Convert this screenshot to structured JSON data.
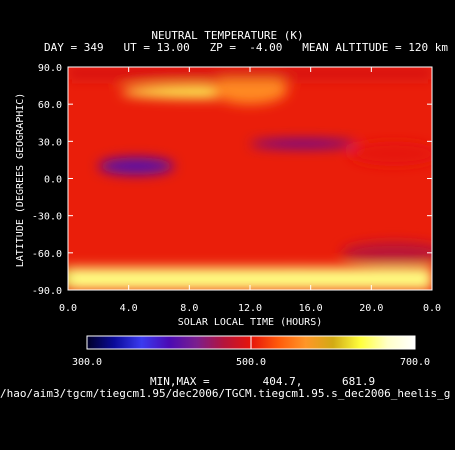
{
  "figure": {
    "title": "NEUTRAL TEMPERATURE (K)",
    "subtitle": "DAY = 349   UT = 13.00   ZP =  -4.00   MEAN ALTITUDE = 120 km",
    "minmax": "MIN,MAX =        404.7,      681.9",
    "filepath": "/hao/aim3/tgcm/tiegcm1.95/dec2006/TGCM.tiegcm1.95.s_dec2006_heelis_g",
    "colors": {
      "background": "#000000",
      "text": "#ffffff",
      "colormap": [
        "#000028",
        "#0a0a9a",
        "#3a3af0",
        "#4a0ab4",
        "#7a1e8e",
        "#b4143c",
        "#e6140a",
        "#ff5a0a",
        "#ff9628",
        "#d2aa14",
        "#ffff3c",
        "#ffffc8",
        "#ffffff"
      ]
    }
  },
  "chart_data": {
    "type": "heatmap",
    "title": "NEUTRAL TEMPERATURE (K)",
    "xlabel": "SOLAR LOCAL TIME (HOURS)",
    "ylabel": "LATITUDE (DEGREES GEOGRAPHIC)",
    "xlim": [
      0,
      24
    ],
    "ylim": [
      -90,
      90
    ],
    "x_ticks": [
      "0.0",
      "4.0",
      "8.0",
      "12.0",
      "16.0",
      "20.0",
      "0.0"
    ],
    "y_ticks": [
      "90.0",
      "60.0",
      "30.0",
      "0.0",
      "-30.0",
      "-60.0",
      "-90.0"
    ],
    "grid": false,
    "colorbar": {
      "min": 300.0,
      "max": 700.0,
      "tick_labels": [
        "300.0",
        "500.0",
        "700.0"
      ]
    },
    "min": 404.7,
    "max": 681.9,
    "features": [
      {
        "x": 4.5,
        "y": 10,
        "value": 410
      },
      {
        "x": 15.5,
        "y": 28,
        "value": 405
      },
      {
        "x": 8.5,
        "y": 70,
        "value": 640
      },
      {
        "x": 12,
        "y": 72,
        "value": 560
      },
      {
        "x": 15,
        "y": -78,
        "value": 680
      },
      {
        "x": 21.5,
        "y": -60,
        "value": 470
      },
      {
        "x": 21.5,
        "y": 20,
        "value": 500
      },
      {
        "x": 0.5,
        "y": -80,
        "value": 600
      }
    ]
  }
}
